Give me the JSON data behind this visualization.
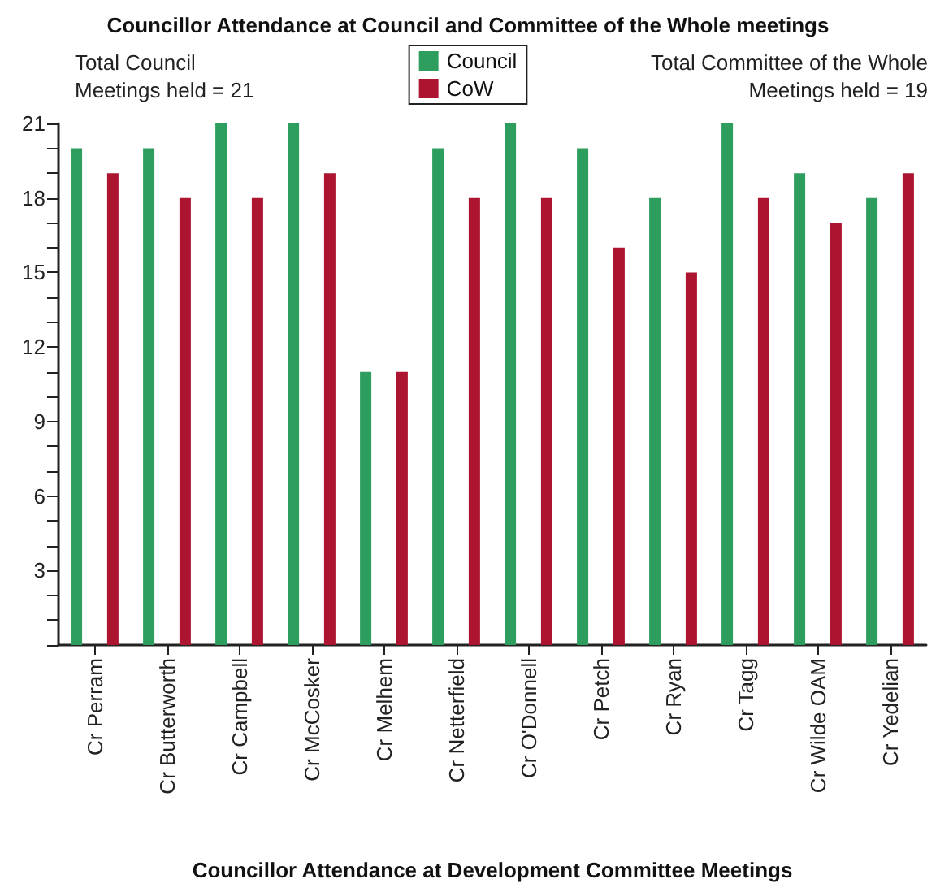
{
  "chart_data": {
    "type": "bar",
    "title": "Councillor Attendance at Council and Committee of the Whole meetings",
    "xlabel": "Councillor Attendance at Development Committee Meetings",
    "annotations": [
      "Total Council\nMeetings held = 21",
      "Total Committee of the Whole\nMeetings held = 19"
    ],
    "categories": [
      "Cr Perram",
      "Cr Butterworth",
      "Cr Campbell",
      "Cr McCosker",
      "Cr Melhem",
      "Cr Netterfield",
      "Cr O'Donnell",
      "Cr Petch",
      "Cr Ryan",
      "Cr Tagg",
      "Cr Wilde OAM",
      "Cr Yedelian"
    ],
    "series": [
      {
        "name": "Council",
        "color": "#2e9e5e",
        "values": [
          20,
          20,
          21,
          21,
          11,
          20,
          21,
          20,
          18,
          21,
          19,
          18
        ]
      },
      {
        "name": "CoW",
        "color": "#ac1430",
        "values": [
          19,
          18,
          18,
          19,
          11,
          18,
          18,
          16,
          15,
          18,
          17,
          19
        ]
      }
    ],
    "ylim": [
      0,
      21
    ],
    "yticks": [
      {
        "value": 0,
        "label": null
      },
      {
        "value": 1,
        "label": null
      },
      {
        "value": 2,
        "label": null
      },
      3,
      {
        "value": 4,
        "label": null
      },
      {
        "value": 5,
        "label": null
      },
      6,
      {
        "value": 7,
        "label": null
      },
      {
        "value": 8,
        "label": null
      },
      9,
      {
        "value": 10,
        "label": null
      },
      {
        "value": 11,
        "label": null
      },
      12,
      {
        "value": 13,
        "label": null
      },
      {
        "value": 14,
        "label": null
      },
      15,
      {
        "value": 16,
        "label": null
      },
      {
        "value": 17,
        "label": null
      },
      18,
      {
        "value": 19,
        "label": null
      },
      {
        "value": 20,
        "label": null
      },
      21
    ],
    "grid": false,
    "legend": "top"
  }
}
